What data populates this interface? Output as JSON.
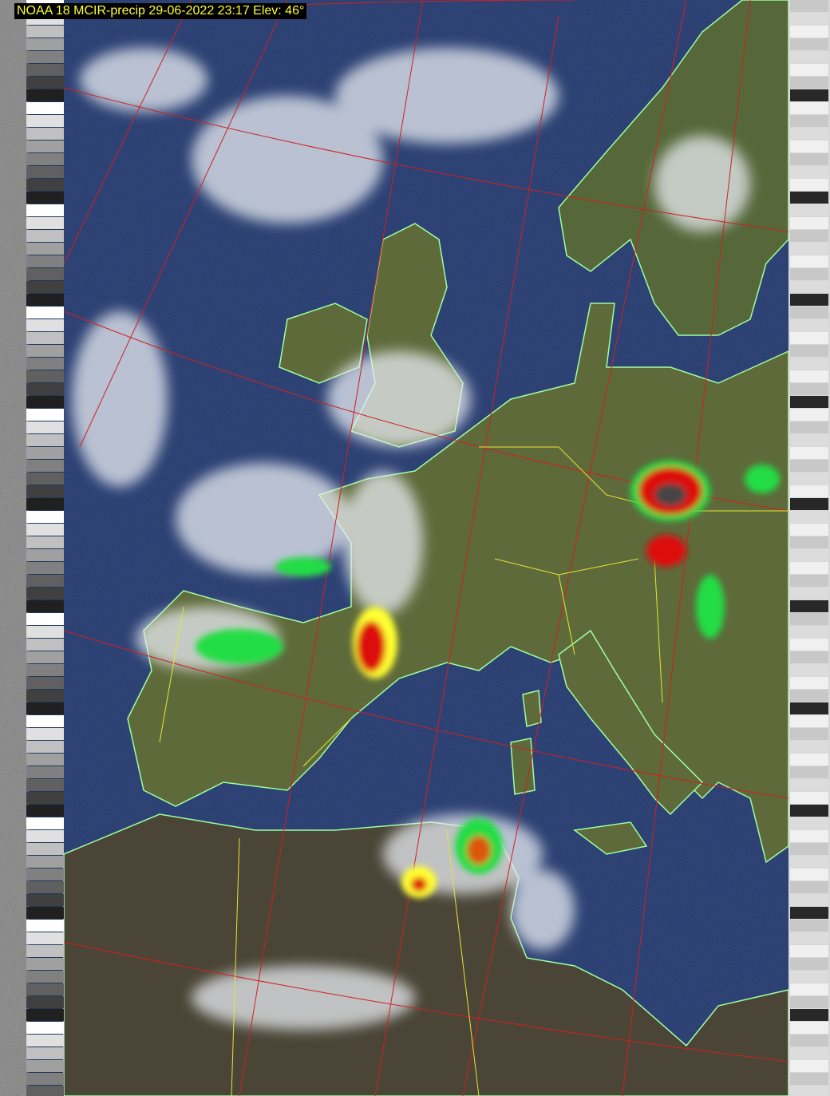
{
  "header": {
    "title": "NOAA 18 MCIR-precip 29-06-2022 23:17 Elev: 46°"
  },
  "colors": {
    "title_text": "#ffff33",
    "title_bg": "#000000",
    "ocean": "#22386e",
    "land": "#5e6a3a",
    "desert": "#4a4536",
    "coastline": "#9fffa0",
    "borders": "#e6e633",
    "graticule": "#d02020",
    "precip_light": "#22dd44",
    "precip_moderate": "#ffff33",
    "precip_heavy": "#dd1111"
  }
}
